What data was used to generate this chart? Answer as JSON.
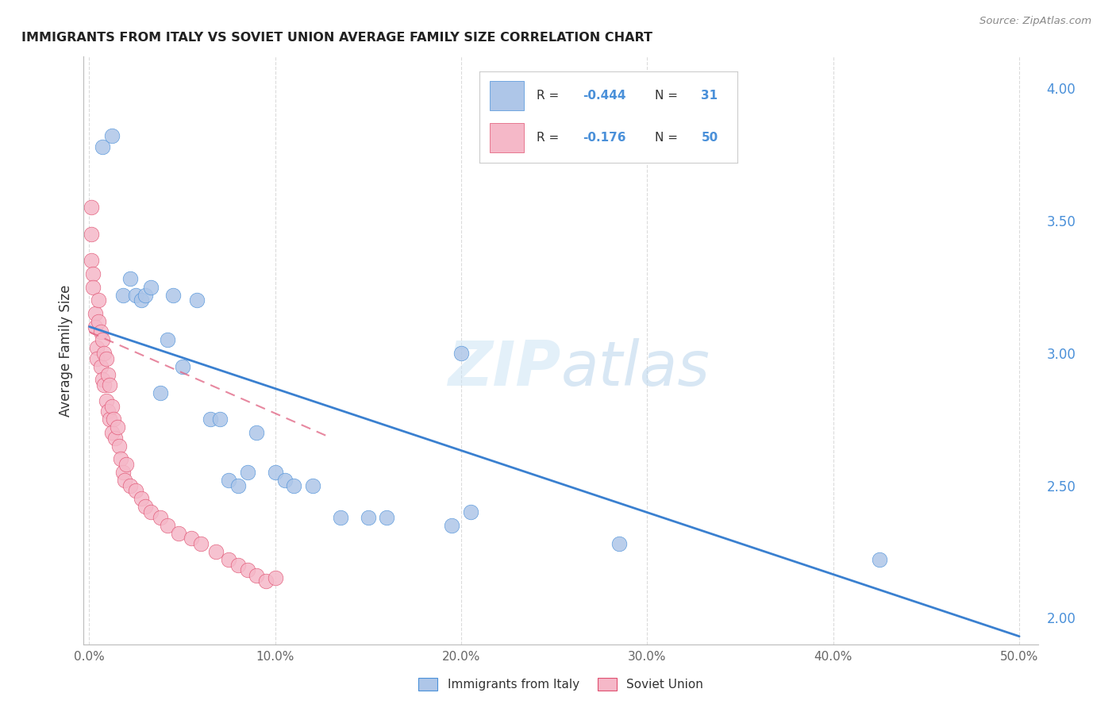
{
  "title": "IMMIGRANTS FROM ITALY VS SOVIET UNION AVERAGE FAMILY SIZE CORRELATION CHART",
  "source": "Source: ZipAtlas.com",
  "ylabel": "Average Family Size",
  "y_ticks_right": [
    2.0,
    2.5,
    3.0,
    3.5,
    4.0
  ],
  "background_color": "#ffffff",
  "grid_color": "#cccccc",
  "watermark": "ZIPatlas",
  "italy_color": "#aec6e8",
  "italy_edge_color": "#4a90d9",
  "italy_line_color": "#3a80d0",
  "soviet_color": "#f5b8c8",
  "soviet_edge_color": "#e05070",
  "soviet_line_color": "#e06080",
  "italy_x": [
    0.007,
    0.012,
    0.018,
    0.022,
    0.025,
    0.028,
    0.03,
    0.033,
    0.038,
    0.042,
    0.045,
    0.05,
    0.058,
    0.065,
    0.07,
    0.075,
    0.08,
    0.085,
    0.09,
    0.1,
    0.105,
    0.11,
    0.12,
    0.135,
    0.15,
    0.16,
    0.2,
    0.285,
    0.425,
    0.195,
    0.205
  ],
  "italy_y": [
    3.78,
    3.82,
    3.22,
    3.28,
    3.22,
    3.2,
    3.22,
    3.25,
    2.85,
    3.05,
    3.22,
    2.95,
    3.2,
    2.75,
    2.75,
    2.52,
    2.5,
    2.55,
    2.7,
    2.55,
    2.52,
    2.5,
    2.5,
    2.38,
    2.38,
    2.38,
    3.0,
    2.28,
    2.22,
    2.35,
    2.4
  ],
  "soviet_x": [
    0.001,
    0.001,
    0.001,
    0.002,
    0.002,
    0.003,
    0.003,
    0.004,
    0.004,
    0.005,
    0.005,
    0.006,
    0.006,
    0.007,
    0.007,
    0.008,
    0.008,
    0.009,
    0.009,
    0.01,
    0.01,
    0.011,
    0.011,
    0.012,
    0.012,
    0.013,
    0.014,
    0.015,
    0.016,
    0.017,
    0.018,
    0.019,
    0.02,
    0.022,
    0.025,
    0.028,
    0.03,
    0.033,
    0.038,
    0.042,
    0.048,
    0.055,
    0.06,
    0.068,
    0.075,
    0.08,
    0.085,
    0.09,
    0.095,
    0.1
  ],
  "soviet_y": [
    3.55,
    3.45,
    3.35,
    3.3,
    3.25,
    3.15,
    3.1,
    3.02,
    2.98,
    3.2,
    3.12,
    3.08,
    2.95,
    3.05,
    2.9,
    3.0,
    2.88,
    2.98,
    2.82,
    2.92,
    2.78,
    2.88,
    2.75,
    2.8,
    2.7,
    2.75,
    2.68,
    2.72,
    2.65,
    2.6,
    2.55,
    2.52,
    2.58,
    2.5,
    2.48,
    2.45,
    2.42,
    2.4,
    2.38,
    2.35,
    2.32,
    2.3,
    2.28,
    2.25,
    2.22,
    2.2,
    2.18,
    2.16,
    2.14,
    2.15
  ],
  "italy_trend_x": [
    0.0,
    0.5
  ],
  "italy_trend_y": [
    3.1,
    1.93
  ],
  "soviet_trend_x": [
    0.0,
    0.13
  ],
  "soviet_trend_y": [
    3.08,
    2.68
  ],
  "xlim": [
    -0.003,
    0.51
  ],
  "ylim": [
    1.9,
    4.12
  ]
}
